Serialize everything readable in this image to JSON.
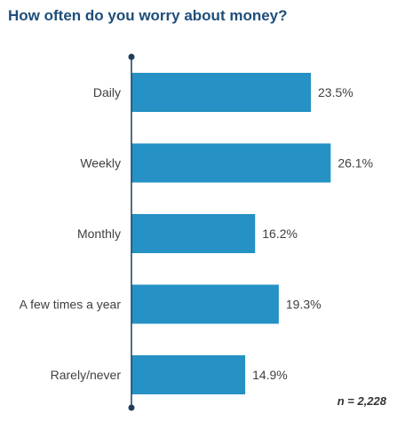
{
  "colors": {
    "bar": "#2591c4",
    "axis": "#1f3d5c",
    "title": "#1f4e79"
  },
  "chart_data": {
    "type": "bar",
    "orientation": "horizontal",
    "title": "How often do you worry about money?",
    "categories": [
      "Daily",
      "Weekly",
      "Monthly",
      "A few times a year",
      "Rarely/never"
    ],
    "values": [
      23.5,
      26.1,
      16.2,
      19.3,
      14.9
    ],
    "value_labels": [
      "23.5%",
      "26.1%",
      "16.2%",
      "19.3%",
      "14.9%"
    ],
    "unit": "%",
    "xlabel": "",
    "ylabel": "",
    "grid": false,
    "legend": "none",
    "note": "n = 2,228"
  }
}
